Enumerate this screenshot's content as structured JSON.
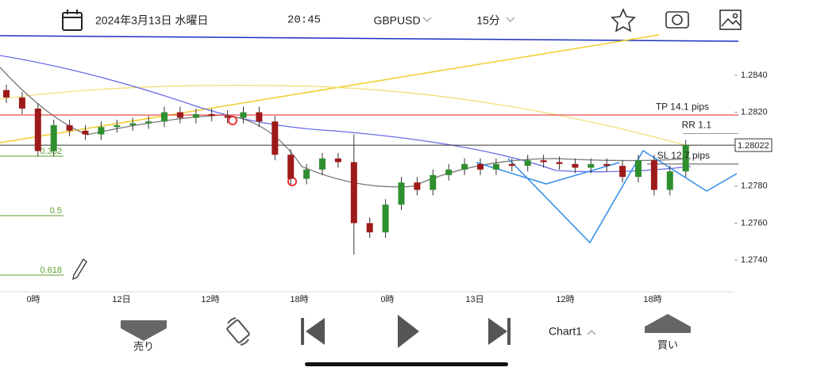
{
  "header": {
    "date": "2024年3月13日 水曜日",
    "time": "20:45",
    "symbol": "GBPUSD",
    "timeframe": "15分"
  },
  "chart_data": {
    "type": "candlestick",
    "open": [
      1.2832,
      1.2828,
      1.2822,
      1.2799,
      1.2813,
      1.281,
      1.2808,
      1.2812,
      1.2813,
      1.2814,
      1.2815,
      1.282,
      1.2817,
      1.2819,
      1.2818,
      1.2817,
      1.282,
      1.2815,
      1.2797,
      1.2784,
      1.2789,
      1.2795,
      1.2793,
      1.276,
      1.2755,
      1.277,
      1.2782,
      1.2778,
      1.2786,
      1.2789,
      1.2792,
      1.2789,
      1.2792,
      1.2791,
      1.2794,
      1.2793,
      1.2792,
      1.279,
      1.2792,
      1.2791,
      1.2785,
      1.2794,
      1.2778,
      1.2788
    ],
    "high": [
      1.2835,
      1.2831,
      1.2825,
      1.2816,
      1.2816,
      1.2813,
      1.2815,
      1.2816,
      1.2817,
      1.2818,
      1.2823,
      1.2823,
      1.2822,
      1.2822,
      1.2821,
      1.2823,
      1.2823,
      1.2818,
      1.28,
      1.2792,
      1.2798,
      1.2798,
      1.2808,
      1.2763,
      1.2773,
      1.2785,
      1.2785,
      1.2789,
      1.2792,
      1.2795,
      1.2795,
      1.2795,
      1.2795,
      1.2797,
      1.2797,
      1.2796,
      1.2795,
      1.2795,
      1.2795,
      1.2794,
      1.2797,
      1.2797,
      1.2791,
      1.2805
    ],
    "low": [
      1.2825,
      1.2819,
      1.2796,
      1.2796,
      1.2807,
      1.2805,
      1.2805,
      1.2809,
      1.281,
      1.2811,
      1.2812,
      1.2814,
      1.2814,
      1.2815,
      1.2814,
      1.2814,
      1.2812,
      1.2794,
      1.2781,
      1.2781,
      1.2786,
      1.279,
      1.2743,
      1.2752,
      1.2752,
      1.2767,
      1.2775,
      1.2775,
      1.2783,
      1.2786,
      1.2786,
      1.2786,
      1.2788,
      1.2788,
      1.279,
      1.2789,
      1.2787,
      1.2787,
      1.2788,
      1.2782,
      1.2782,
      1.2775,
      1.2775,
      1.2785
    ],
    "close": [
      1.2828,
      1.2822,
      1.2799,
      1.2813,
      1.281,
      1.2808,
      1.2812,
      1.2813,
      1.2814,
      1.2815,
      1.282,
      1.2817,
      1.2819,
      1.2818,
      1.2817,
      1.282,
      1.2815,
      1.2797,
      1.2784,
      1.2789,
      1.2795,
      1.2793,
      1.276,
      1.2755,
      1.277,
      1.2782,
      1.2778,
      1.2786,
      1.2789,
      1.2792,
      1.2789,
      1.2792,
      1.2791,
      1.2794,
      1.2793,
      1.2792,
      1.279,
      1.2792,
      1.2791,
      1.2785,
      1.2794,
      1.2778,
      1.2788,
      1.28022
    ],
    "up_color": "#2f8f2f",
    "down_color": "#9e1a1a",
    "ylim": [
      1.2722,
      1.2862
    ],
    "yticks": [
      {
        "value": 1.284,
        "label": "1.2840"
      },
      {
        "value": 1.282,
        "label": "1.2820"
      },
      {
        "value": 1.278,
        "label": "1.2780"
      },
      {
        "value": 1.276,
        "label": "1.2760"
      },
      {
        "value": 1.274,
        "label": "1.2740"
      }
    ],
    "x_labels": [
      "0時",
      "12日",
      "12時",
      "18時",
      "0時",
      "13日",
      "12時",
      "18時"
    ],
    "price": 1.28022,
    "tp": {
      "value": 1.28185,
      "label": "TP 14.1 pips"
    },
    "sl": {
      "value": 1.2792,
      "label": "SL 12.7 pips"
    },
    "rr": {
      "value": 1.2805,
      "label": "RR 1.1"
    },
    "fib": [
      "0.382",
      "0.5",
      "0.618"
    ]
  },
  "toolbar": {
    "sell": "売り",
    "chart": "Chart1",
    "buy": "買い"
  }
}
